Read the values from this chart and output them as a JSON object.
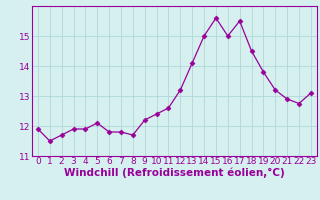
{
  "x": [
    0,
    1,
    2,
    3,
    4,
    5,
    6,
    7,
    8,
    9,
    10,
    11,
    12,
    13,
    14,
    15,
    16,
    17,
    18,
    19,
    20,
    21,
    22,
    23
  ],
  "y": [
    11.9,
    11.5,
    11.7,
    11.9,
    11.9,
    12.1,
    11.8,
    11.8,
    11.7,
    12.2,
    12.4,
    12.6,
    13.2,
    14.1,
    15.0,
    15.6,
    15.0,
    15.5,
    14.5,
    13.8,
    13.2,
    12.9,
    12.75,
    13.1
  ],
  "line_color": "#990099",
  "marker": "D",
  "marker_size": 2.5,
  "bg_color": "#d6f0f0",
  "grid_color": "#b0d8d8",
  "tick_color": "#990099",
  "label_color": "#990099",
  "xlabel": "Windchill (Refroidissement éolien,°C)",
  "ylim": [
    11.0,
    16.0
  ],
  "xlim": [
    -0.5,
    23.5
  ],
  "yticks": [
    11,
    12,
    13,
    14,
    15
  ],
  "xticks": [
    0,
    1,
    2,
    3,
    4,
    5,
    6,
    7,
    8,
    9,
    10,
    11,
    12,
    13,
    14,
    15,
    16,
    17,
    18,
    19,
    20,
    21,
    22,
    23
  ],
  "font_size": 6.5,
  "label_font_size": 7.5
}
